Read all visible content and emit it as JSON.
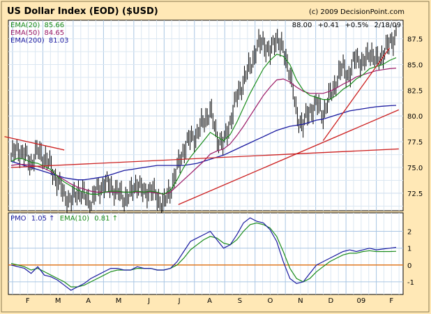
{
  "chart_data": {
    "type": "line",
    "title": "US Dollar Index (EOD) ($USD)",
    "copyright": "(c) 2009 DecisionPoint.com",
    "quote": {
      "last": "88.00",
      "change": "+0.41",
      "pct": "+0.5%",
      "date": "2/18/09"
    },
    "months": [
      "F",
      "M",
      "A",
      "M",
      "J",
      "J",
      "A",
      "S",
      "O",
      "N",
      "D",
      "09",
      "F"
    ],
    "price_panel": {
      "ylim": [
        70.8,
        89.3
      ],
      "yticks": [
        "87.5",
        "85.0",
        "82.5",
        "80.0",
        "77.5",
        "75.0",
        "72.5"
      ],
      "legend": [
        {
          "name": "EMA(20)",
          "value": "85.66",
          "color": "#1a8c1a"
        },
        {
          "name": "EMA(50)",
          "value": "84.65",
          "color": "#9b1a66"
        },
        {
          "name": "EMA(200)",
          "value": "81.03",
          "color": "#1a1aa0"
        }
      ],
      "x": [
        0,
        5,
        10,
        15,
        20,
        25,
        30,
        35,
        40,
        45,
        50,
        55,
        60,
        65,
        70,
        75,
        80,
        85,
        90,
        95,
        100,
        105,
        110,
        115,
        120,
        125,
        130,
        135,
        140,
        145,
        150,
        155,
        160,
        165,
        170,
        175,
        180,
        185,
        190,
        195,
        200,
        205,
        210,
        215,
        220,
        225,
        230,
        235,
        240,
        245,
        250,
        255,
        260,
        265,
        270,
        275,
        280,
        285,
        290
      ],
      "close": [
        76.0,
        76.8,
        76.2,
        75.4,
        76.6,
        76.0,
        75.0,
        73.6,
        72.4,
        71.6,
        72.8,
        72.2,
        71.6,
        72.8,
        73.4,
        73.2,
        72.6,
        72.0,
        72.4,
        73.6,
        72.4,
        73.0,
        72.0,
        71.4,
        72.8,
        74.8,
        76.8,
        77.8,
        78.2,
        79.5,
        80.5,
        78.0,
        77.2,
        79.5,
        81.8,
        83.4,
        84.8,
        86.6,
        87.3,
        86.0,
        87.8,
        86.2,
        84.4,
        80.0,
        79.2,
        80.5,
        81.2,
        80.2,
        81.8,
        83.4,
        84.8,
        83.8,
        86.0,
        84.8,
        86.4,
        85.2,
        86.0,
        87.0,
        88.0
      ],
      "ema20": [
        75.6,
        75.9,
        75.8,
        75.5,
        75.4,
        75.1,
        74.8,
        74.1,
        73.6,
        73.2,
        72.8,
        72.6,
        72.4,
        72.4,
        72.6,
        72.7,
        72.7,
        72.6,
        72.6,
        72.7,
        72.6,
        72.7,
        72.6,
        72.4,
        72.8,
        73.8,
        75.0,
        76.0,
        76.8,
        77.6,
        78.4,
        78.0,
        77.6,
        78.2,
        79.4,
        80.8,
        82.2,
        83.4,
        84.6,
        85.4,
        86.0,
        85.8,
        85.0,
        83.5,
        82.5,
        82.0,
        81.8,
        81.6,
        81.6,
        82.0,
        82.6,
        83.0,
        83.6,
        84.0,
        84.6,
        84.8,
        85.0,
        85.4,
        85.66
      ],
      "ema50": [
        75.2,
        75.3,
        75.3,
        75.2,
        75.1,
        74.9,
        74.6,
        74.2,
        73.8,
        73.4,
        73.1,
        72.9,
        72.7,
        72.6,
        72.6,
        72.6,
        72.6,
        72.6,
        72.6,
        72.6,
        72.6,
        72.6,
        72.5,
        72.4,
        72.6,
        73.2,
        73.8,
        74.4,
        75.0,
        75.6,
        76.3,
        76.6,
        76.8,
        77.3,
        78.1,
        79.0,
        80.0,
        81.0,
        82.0,
        82.8,
        83.5,
        83.6,
        83.3,
        82.8,
        82.4,
        82.2,
        82.2,
        82.2,
        82.4,
        82.7,
        83.1,
        83.4,
        83.8,
        84.0,
        84.2,
        84.4,
        84.5,
        84.6,
        84.65
      ],
      "ema200": [
        75.6,
        75.4,
        75.2,
        75.0,
        74.8,
        74.6,
        74.4,
        74.2,
        74.0,
        73.9,
        73.8,
        73.8,
        73.9,
        74.0,
        74.1,
        74.3,
        74.5,
        74.7,
        74.8,
        74.9,
        75.0,
        75.1,
        75.2,
        75.2,
        75.2,
        75.2,
        75.2,
        75.3,
        75.4,
        75.6,
        75.8,
        76.0,
        76.2,
        76.5,
        76.8,
        77.1,
        77.4,
        77.7,
        78.0,
        78.3,
        78.6,
        78.8,
        79.0,
        79.1,
        79.2,
        79.4,
        79.6,
        79.7,
        79.9,
        80.1,
        80.3,
        80.5,
        80.6,
        80.7,
        80.8,
        80.9,
        80.95,
        81.0,
        81.03
      ],
      "trendlines": [
        {
          "color": "#cc2020",
          "x1": -5,
          "y1": 78.0,
          "x2": 40,
          "y2": 76.7
        },
        {
          "color": "#cc2020",
          "x1": 0,
          "y1": 75.0,
          "x2": 292,
          "y2": 76.8
        },
        {
          "color": "#cc2020",
          "x1": 126,
          "y1": 71.4,
          "x2": 292,
          "y2": 80.6
        },
        {
          "color": "#cc2020",
          "x1": 235,
          "y1": 77.6,
          "x2": 285,
          "y2": 86.6
        }
      ]
    },
    "pmo_panel": {
      "ylim": [
        -1.75,
        3.1
      ],
      "yticks": [
        "2",
        "1",
        "0",
        "-1"
      ],
      "legend": [
        {
          "name": "PMO",
          "value": "1.05",
          "color": "#1a1aa0"
        },
        {
          "name": "EMA(10)",
          "value": "0.81",
          "color": "#1a8c1a"
        }
      ],
      "zero_color": "#e07820",
      "pmo": [
        0.0,
        -0.1,
        -0.2,
        -0.5,
        -0.1,
        -0.6,
        -0.7,
        -0.9,
        -1.2,
        -1.5,
        -1.3,
        -1.1,
        -0.8,
        -0.6,
        -0.4,
        -0.2,
        -0.2,
        -0.3,
        -0.3,
        -0.1,
        -0.2,
        -0.2,
        -0.3,
        -0.3,
        -0.2,
        0.2,
        0.8,
        1.4,
        1.6,
        1.8,
        2.0,
        1.5,
        1.0,
        1.2,
        1.8,
        2.5,
        2.8,
        2.6,
        2.5,
        2.1,
        1.4,
        0.2,
        -0.8,
        -1.1,
        -1.0,
        -0.5,
        0.0,
        0.2,
        0.4,
        0.6,
        0.8,
        0.9,
        0.8,
        0.9,
        1.0,
        0.9,
        0.95,
        1.0,
        1.05
      ],
      "ema10": [
        0.1,
        0.0,
        -0.1,
        -0.3,
        -0.2,
        -0.4,
        -0.6,
        -0.8,
        -1.0,
        -1.3,
        -1.3,
        -1.2,
        -1.0,
        -0.8,
        -0.6,
        -0.4,
        -0.3,
        -0.3,
        -0.3,
        -0.2,
        -0.2,
        -0.2,
        -0.3,
        -0.3,
        -0.2,
        0.0,
        0.4,
        0.9,
        1.2,
        1.5,
        1.7,
        1.6,
        1.3,
        1.2,
        1.5,
        2.0,
        2.4,
        2.5,
        2.4,
        2.2,
        1.7,
        0.8,
        -0.2,
        -0.8,
        -1.0,
        -0.8,
        -0.4,
        -0.1,
        0.2,
        0.4,
        0.6,
        0.7,
        0.7,
        0.8,
        0.85,
        0.8,
        0.8,
        0.8,
        0.81
      ]
    }
  }
}
